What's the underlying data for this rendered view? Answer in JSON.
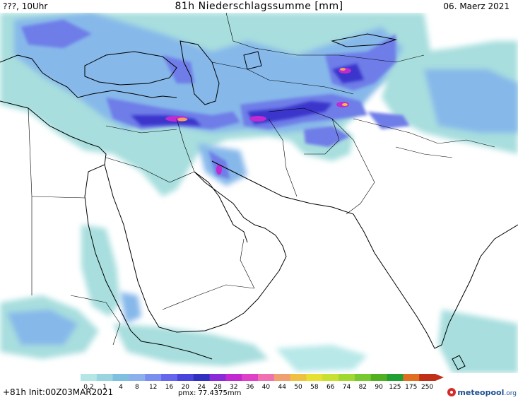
{
  "header": {
    "left": "???, 10Uhr",
    "title": "81h Niederschlagssumme [mm]",
    "date": "06. Maerz 2021"
  },
  "legend": {
    "labels": [
      "0.2",
      "1",
      "4",
      "8",
      "12",
      "16",
      "20",
      "24",
      "28",
      "32",
      "36",
      "40",
      "44",
      "50",
      "58",
      "66",
      "74",
      "82",
      "90",
      "125",
      "175",
      "250"
    ],
    "colors": [
      "#b4e6e6",
      "#9ad4e0",
      "#7fbfe0",
      "#8cb0ec",
      "#7a8ef0",
      "#6466ec",
      "#4646dc",
      "#3030c0",
      "#8a2ad8",
      "#c02ad0",
      "#e040c8",
      "#f070b0",
      "#f0a070",
      "#f0c040",
      "#e8e030",
      "#c8e030",
      "#a0d830",
      "#78c830",
      "#50b020",
      "#20a030",
      "#e07020",
      "#c03018"
    ]
  },
  "footer": {
    "init": "+81h Init:00Z03MAR2021",
    "pmx": "pmx: 77.4375mm",
    "brand": "meteopool",
    "brand_tld": ".org"
  },
  "colors": {
    "light": "#a8dede",
    "mid": "#86b8ea",
    "blue": "#6e7de8",
    "deep": "#3a36cc",
    "magenta": "#c02ad0",
    "orange": "#f0a060"
  }
}
